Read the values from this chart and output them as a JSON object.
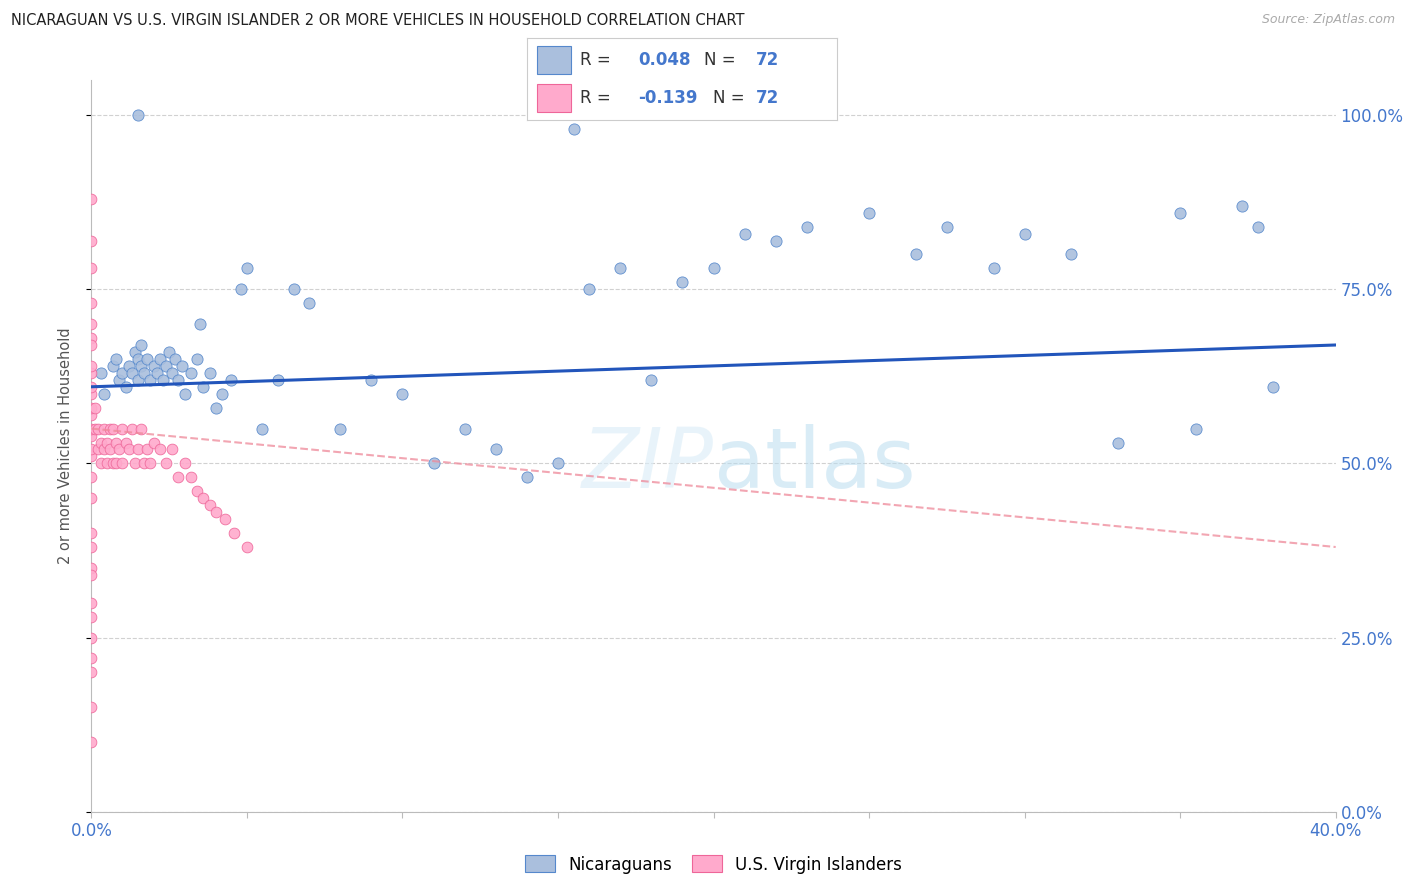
{
  "title": "NICARAGUAN VS U.S. VIRGIN ISLANDER 2 OR MORE VEHICLES IN HOUSEHOLD CORRELATION CHART",
  "source": "Source: ZipAtlas.com",
  "ylabel_label": "2 or more Vehicles in Household",
  "legend_label1": "Nicaraguans",
  "legend_label2": "U.S. Virgin Islanders",
  "blue_scatter_color": "#AABFDD",
  "blue_edge_color": "#5588CC",
  "pink_scatter_color": "#FFAACC",
  "pink_edge_color": "#EE6699",
  "blue_line_color": "#2255BB",
  "pink_line_color": "#EE8899",
  "watermark_color": "#CCE0F0",
  "grid_color": "#CCCCCC",
  "axis_label_color": "#4477CC",
  "title_color": "#222222",
  "source_color": "#AAAAAA",
  "x_min": 0.0,
  "x_max": 0.4,
  "y_min": 0.0,
  "y_max": 1.05,
  "blue_R": 0.048,
  "pink_R": -0.139,
  "N": 72,
  "blue_x": [
    0.003,
    0.004,
    0.007,
    0.008,
    0.009,
    0.01,
    0.011,
    0.012,
    0.013,
    0.014,
    0.015,
    0.015,
    0.016,
    0.016,
    0.017,
    0.018,
    0.019,
    0.02,
    0.021,
    0.022,
    0.023,
    0.024,
    0.025,
    0.026,
    0.027,
    0.028,
    0.029,
    0.03,
    0.032,
    0.034,
    0.036,
    0.038,
    0.04,
    0.042,
    0.045,
    0.048,
    0.05,
    0.055,
    0.06,
    0.065,
    0.07,
    0.08,
    0.09,
    0.1,
    0.11,
    0.12,
    0.13,
    0.14,
    0.15,
    0.16,
    0.17,
    0.18,
    0.19,
    0.2,
    0.21,
    0.22,
    0.23,
    0.25,
    0.265,
    0.275,
    0.29,
    0.3,
    0.315,
    0.33,
    0.35,
    0.355,
    0.37,
    0.375,
    0.38,
    0.155,
    0.015,
    0.035
  ],
  "blue_y": [
    0.63,
    0.6,
    0.64,
    0.65,
    0.62,
    0.63,
    0.61,
    0.64,
    0.63,
    0.66,
    0.62,
    0.65,
    0.64,
    0.67,
    0.63,
    0.65,
    0.62,
    0.64,
    0.63,
    0.65,
    0.62,
    0.64,
    0.66,
    0.63,
    0.65,
    0.62,
    0.64,
    0.6,
    0.63,
    0.65,
    0.61,
    0.63,
    0.58,
    0.6,
    0.62,
    0.75,
    0.78,
    0.55,
    0.62,
    0.75,
    0.73,
    0.55,
    0.62,
    0.6,
    0.5,
    0.55,
    0.52,
    0.48,
    0.5,
    0.75,
    0.78,
    0.62,
    0.76,
    0.78,
    0.83,
    0.82,
    0.84,
    0.86,
    0.8,
    0.84,
    0.78,
    0.83,
    0.8,
    0.53,
    0.86,
    0.55,
    0.87,
    0.84,
    0.61,
    0.98,
    1.0,
    0.7
  ],
  "pink_x": [
    0.0,
    0.0,
    0.0,
    0.0,
    0.0,
    0.0,
    0.0,
    0.0,
    0.0,
    0.0,
    0.001,
    0.001,
    0.002,
    0.002,
    0.003,
    0.003,
    0.004,
    0.004,
    0.005,
    0.005,
    0.006,
    0.006,
    0.007,
    0.007,
    0.008,
    0.008,
    0.009,
    0.01,
    0.01,
    0.011,
    0.012,
    0.013,
    0.014,
    0.015,
    0.016,
    0.017,
    0.018,
    0.019,
    0.02,
    0.022,
    0.024,
    0.026,
    0.028,
    0.03,
    0.032,
    0.034,
    0.036,
    0.038,
    0.04,
    0.043,
    0.046,
    0.05,
    0.0,
    0.0,
    0.0,
    0.0,
    0.0,
    0.0,
    0.0,
    0.0,
    0.0,
    0.0,
    0.0,
    0.0,
    0.0,
    0.0,
    0.0,
    0.0,
    0.0,
    0.0,
    0.0,
    0.0
  ],
  "pink_y": [
    0.63,
    0.6,
    0.57,
    0.54,
    0.51,
    0.48,
    0.52,
    0.55,
    0.58,
    0.61,
    0.55,
    0.58,
    0.52,
    0.55,
    0.5,
    0.53,
    0.52,
    0.55,
    0.5,
    0.53,
    0.55,
    0.52,
    0.55,
    0.5,
    0.53,
    0.5,
    0.52,
    0.55,
    0.5,
    0.53,
    0.52,
    0.55,
    0.5,
    0.52,
    0.55,
    0.5,
    0.52,
    0.5,
    0.53,
    0.52,
    0.5,
    0.52,
    0.48,
    0.5,
    0.48,
    0.46,
    0.45,
    0.44,
    0.43,
    0.42,
    0.4,
    0.38,
    0.88,
    0.82,
    0.78,
    0.73,
    0.68,
    0.64,
    0.7,
    0.67,
    0.45,
    0.4,
    0.35,
    0.3,
    0.25,
    0.2,
    0.15,
    0.1,
    0.38,
    0.34,
    0.28,
    0.22
  ],
  "blue_line_y0": 0.61,
  "blue_line_y1": 0.67,
  "pink_line_y0": 0.55,
  "pink_line_y1": 0.38
}
